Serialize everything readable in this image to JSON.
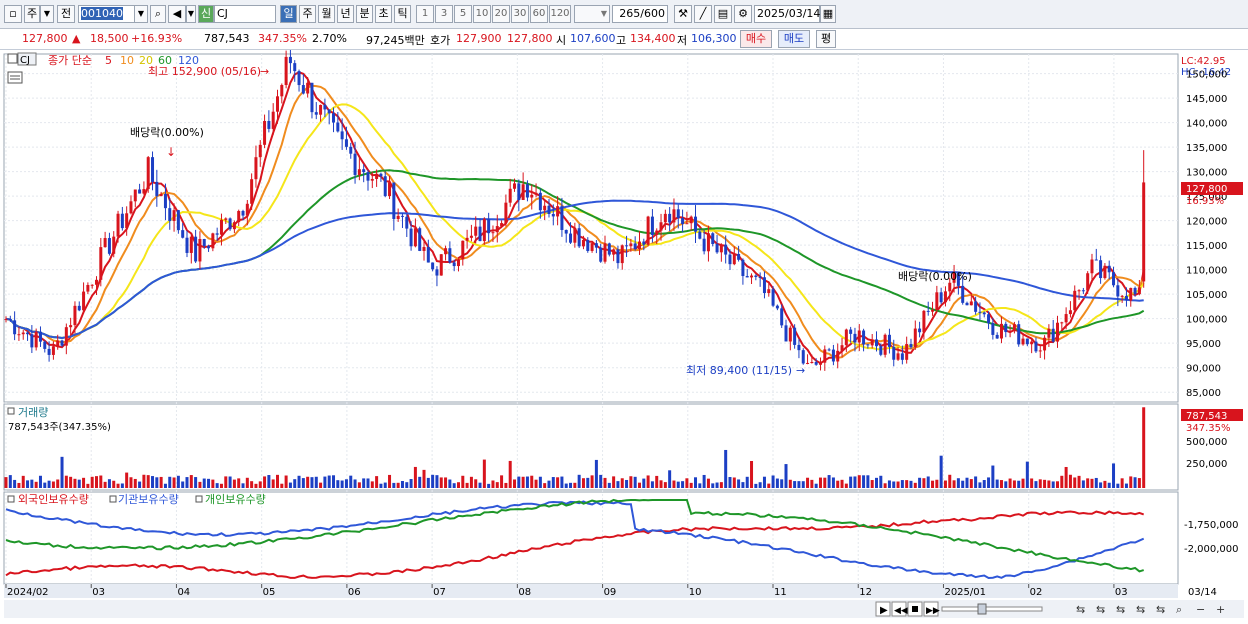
{
  "toolbar": {
    "period_main": "주",
    "prev_label": "전",
    "stock_code": "001040",
    "new_badge": "신",
    "stock_name": "CJ",
    "period_tabs": [
      "일",
      "주",
      "월",
      "년",
      "분",
      "초",
      "틱"
    ],
    "period_numbers": [
      "1",
      "3",
      "5",
      "10",
      "20",
      "30",
      "60",
      "120"
    ],
    "count_value": "265",
    "count_total": "/600",
    "date_value": "2025/03/14"
  },
  "quote": {
    "price": "127,800",
    "change_arrow": "▲",
    "change": "18,500",
    "change_rate": "+16.93%",
    "volume": "787,543",
    "volume_rate": "347.35%",
    "turnover_rate": "2.70%",
    "amount": "97,245백만",
    "hoga_label": "호가",
    "ask": "127,900",
    "bid": "127,800",
    "open_label": "시",
    "open": "107,600",
    "high_label": "고",
    "high": "134,400",
    "low_label": "저",
    "low": "106,300",
    "buy_button": "매수",
    "sell_button": "매도",
    "eval_button": "평"
  },
  "price_panel": {
    "legend_stock": "CJ",
    "legend_title": "종가 단순",
    "ma_periods": [
      "5",
      "10",
      "20",
      "60",
      "120"
    ],
    "ma_colors": [
      "#d8141d",
      "#f08c1e",
      "#f5e61a",
      "#1e9628",
      "#2f57d8"
    ],
    "annotation_high": "최고 152,900 (05/16)",
    "annotation_low": "최저 89,400 (11/15)",
    "annotation_div1": "배당락(0.00%)",
    "annotation_div2": "배당락(0.00%)",
    "lc_label": "LC:42.95",
    "hc_label": "HC:-16.42",
    "price_tag": "127,800",
    "rate_tag": "16.93%",
    "y_ticks": [
      "150,000",
      "145,000",
      "140,000",
      "135,000",
      "130,000",
      "125,000",
      "120,000",
      "115,000",
      "110,000",
      "105,000",
      "100,000",
      "95,000",
      "90,000",
      "85,000"
    ]
  },
  "volume_panel": {
    "title": "거래량",
    "info": "787,543주(347.35%)",
    "volume_tag": "787,543",
    "rate_tag": "347.35%",
    "y_ticks": [
      "500,000",
      "250,000"
    ]
  },
  "holding_panel": {
    "legend": [
      "외국인보유수량",
      "기관보유수량",
      "개인보유수량"
    ],
    "colors": [
      "#d8141d",
      "#2f57d8",
      "#1e9628"
    ],
    "y_ticks": [
      "-1,750,000",
      "-2,000,000"
    ]
  },
  "x_axis": {
    "labels": [
      "2024/02",
      "03",
      "04",
      "05",
      "06",
      "07",
      "08",
      "09",
      "10",
      "11",
      "12",
      "2025/01",
      "02",
      "03"
    ],
    "last_date": "03/14"
  },
  "chart_data": {
    "type": "candlestick",
    "title": "CJ",
    "y_range": [
      83000,
      154000
    ],
    "x_range": [
      "2024/02",
      "2025/03/14"
    ],
    "grid": true,
    "close_series": [
      {
        "month": "2024/02",
        "close": 100000
      },
      {
        "month": "2024/03",
        "close": 93000
      },
      {
        "month": "2024/03",
        "close": 112000
      },
      {
        "month": "2024/04",
        "close": 130000
      },
      {
        "month": "2024/04",
        "close": 113000
      },
      {
        "month": "2024/05",
        "close": 123000
      },
      {
        "month": "2024/05",
        "close": 152900
      },
      {
        "month": "2024/06",
        "close": 136000
      },
      {
        "month": "2024/06",
        "close": 127000
      },
      {
        "month": "2024/07",
        "close": 110000
      },
      {
        "month": "2024/07",
        "close": 117000
      },
      {
        "month": "2024/08",
        "close": 128000
      },
      {
        "month": "2024/08",
        "close": 118000
      },
      {
        "month": "2024/09",
        "close": 112000
      },
      {
        "month": "2024/09",
        "close": 123000
      },
      {
        "month": "2024/10",
        "close": 114000
      },
      {
        "month": "2024/10",
        "close": 106000
      },
      {
        "month": "2024/11",
        "close": 89400
      },
      {
        "month": "2024/11",
        "close": 97000
      },
      {
        "month": "2024/12",
        "close": 93000
      },
      {
        "month": "2024/12",
        "close": 108000
      },
      {
        "month": "2025/01",
        "close": 98000
      },
      {
        "month": "2025/02",
        "close": 95000
      },
      {
        "month": "2025/02",
        "close": 110000
      },
      {
        "month": "2025/03",
        "close": 104000
      },
      {
        "month": "2025/03/14",
        "close": 127800
      }
    ],
    "last": {
      "open": 107600,
      "high": 134400,
      "low": 106300,
      "close": 127800,
      "volume": 787543
    }
  }
}
